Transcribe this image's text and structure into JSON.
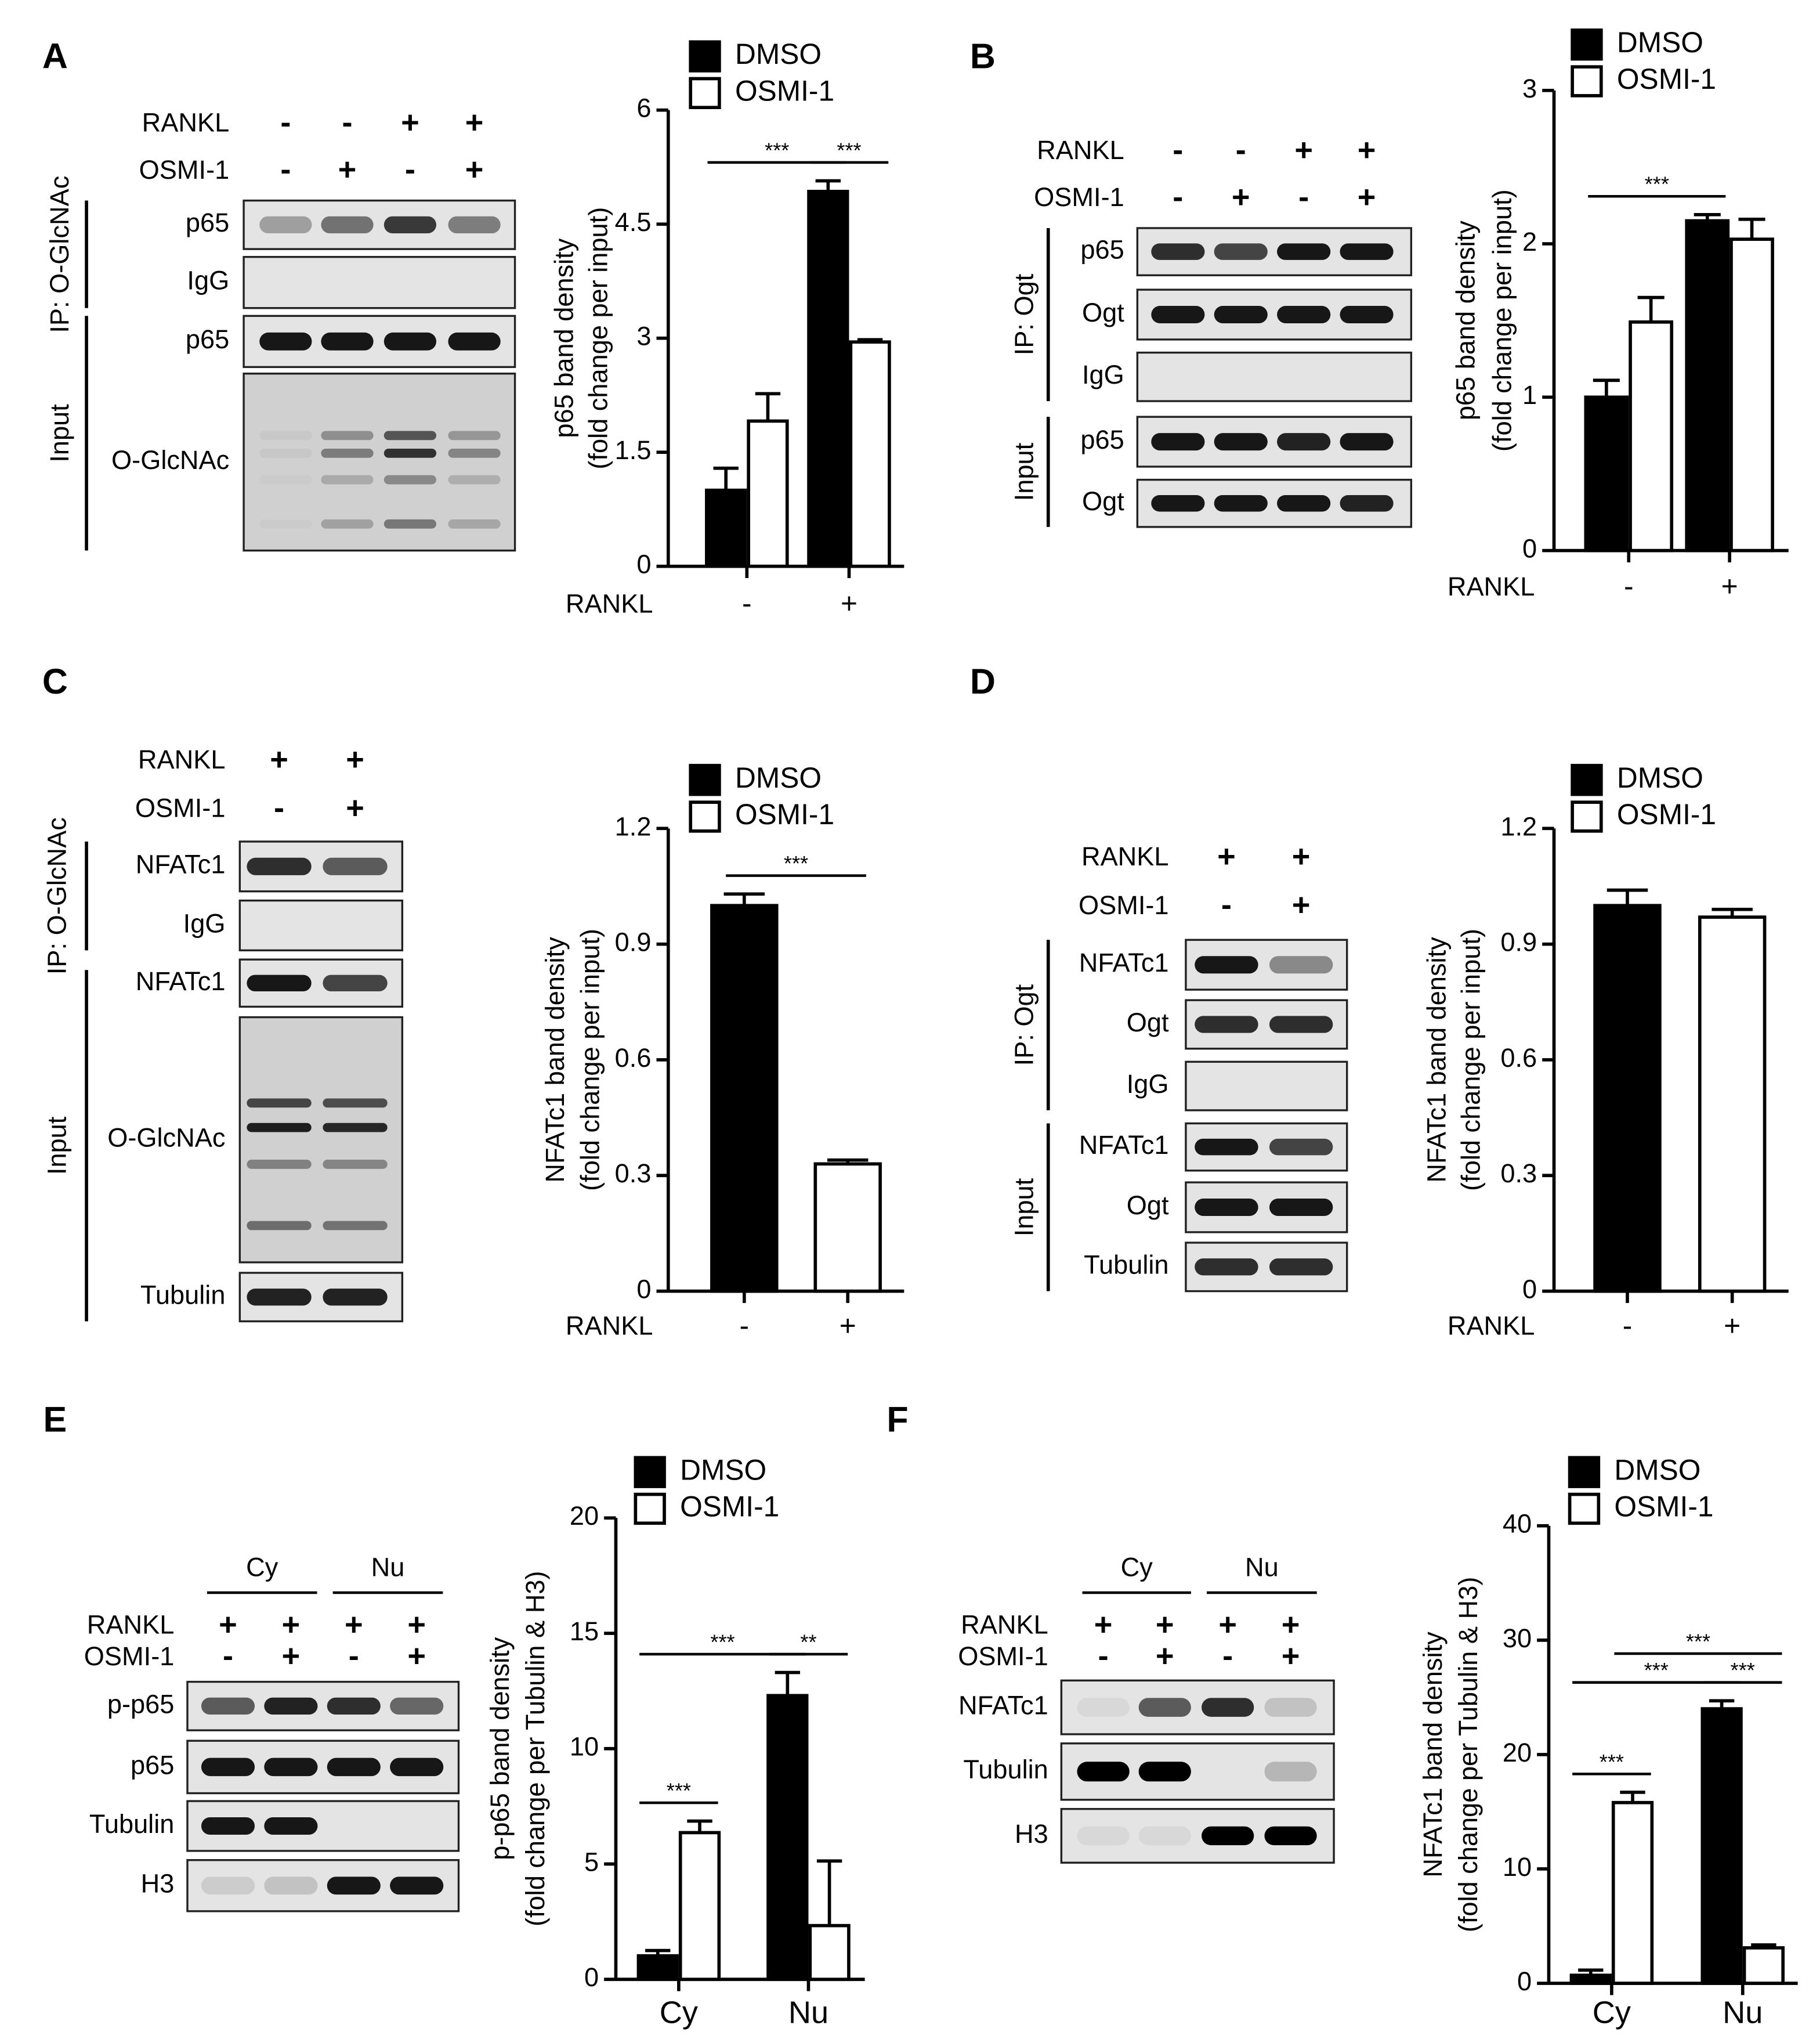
{
  "chart_data": [
    {
      "type": "bar",
      "ylabel": [
        "p65 band density",
        "(fold change per input)"
      ],
      "xlabel": "RANKL",
      "categories": [
        "-",
        "+"
      ],
      "ylim": [
        0,
        6
      ],
      "yticks": [
        0,
        1.5,
        3,
        4.5,
        6
      ],
      "series": [
        {
          "name": "DMSO",
          "color": "#000000",
          "values": [
            1.0,
            4.93
          ],
          "errors": [
            0.29,
            0.14
          ]
        },
        {
          "name": "OSMI-1",
          "color": "#ffffff",
          "values": [
            1.91,
            2.95
          ],
          "errors": [
            0.36,
            0.03
          ]
        }
      ],
      "significance": [
        {
          "label": "***",
          "bars": [
            [
              0,
              1
            ],
            [
              1,
              1
            ]
          ]
        },
        {
          "label": "***",
          "bars": [
            [
              0,
              0
            ],
            [
              0,
              1
            ]
          ]
        }
      ]
    },
    {
      "type": "bar",
      "ylabel": [
        "p65 band density",
        "(fold change per input)"
      ],
      "xlabel": "RANKL",
      "categories": [
        "-",
        "+"
      ],
      "ylim": [
        0,
        3
      ],
      "yticks": [
        0,
        1,
        2,
        3
      ],
      "series": [
        {
          "name": "DMSO",
          "color": "#000000",
          "values": [
            1.0,
            2.15
          ],
          "errors": [
            0.11,
            0.04
          ]
        },
        {
          "name": "OSMI-1",
          "color": "#ffffff",
          "values": [
            1.49,
            2.03
          ],
          "errors": [
            0.16,
            0.13
          ]
        }
      ],
      "significance": [
        {
          "label": "***",
          "bars": [
            [
              0,
              0
            ],
            [
              0,
              1
            ]
          ]
        }
      ]
    },
    {
      "type": "bar",
      "ylabel": [
        "NFATc1 band density",
        "(fold change per input)"
      ],
      "xlabel": "RANKL",
      "categories": [
        "-",
        "+"
      ],
      "ylim": [
        0,
        1.2
      ],
      "yticks": [
        0,
        0.3,
        0.6,
        0.9,
        1.2
      ],
      "series": [
        {
          "name": "DMSO",
          "color": "#000000",
          "values": [
            1.0,
            null
          ],
          "errors": [
            0.03,
            null
          ]
        },
        {
          "name": "OSMI-1",
          "color": "#ffffff",
          "values": [
            null,
            0.33
          ],
          "errors": [
            null,
            0.01
          ]
        }
      ],
      "significance": [
        {
          "label": "***",
          "bars": [
            [
              0,
              0
            ],
            [
              1,
              1
            ]
          ]
        }
      ]
    },
    {
      "type": "bar",
      "ylabel": [
        "NFATc1 band density",
        "(fold change per input)"
      ],
      "xlabel": "RANKL",
      "categories": [
        "-",
        "+"
      ],
      "ylim": [
        0,
        1.2
      ],
      "yticks": [
        0,
        0.3,
        0.6,
        0.9,
        1.2
      ],
      "series": [
        {
          "name": "DMSO",
          "color": "#000000",
          "values": [
            1.0,
            null
          ],
          "errors": [
            0.04,
            null
          ]
        },
        {
          "name": "OSMI-1",
          "color": "#ffffff",
          "values": [
            null,
            0.97
          ],
          "errors": [
            null,
            0.02
          ]
        }
      ]
    },
    {
      "type": "bar",
      "ylabel": [
        "p-p65 band density",
        "(fold change per Tubulin & H3)"
      ],
      "categories": [
        "Cy",
        "Nu"
      ],
      "ylim": [
        0,
        20
      ],
      "yticks": [
        0,
        5,
        10,
        15,
        20
      ],
      "series": [
        {
          "name": "DMSO",
          "color": "#000000",
          "values": [
            1.02,
            12.3
          ],
          "errors": [
            0.23,
            1.0
          ]
        },
        {
          "name": "OSMI-1",
          "color": "#ffffff",
          "values": [
            6.36,
            2.33
          ],
          "errors": [
            0.5,
            2.8
          ]
        }
      ],
      "significance": [
        {
          "label": "***",
          "bars": [
            [
              0,
              0
            ],
            [
              1,
              0
            ]
          ]
        },
        {
          "label": "**",
          "bars": [
            [
              0,
              1
            ],
            [
              1,
              1
            ]
          ]
        },
        {
          "label": "***",
          "bars": [
            [
              0,
              0
            ],
            [
              0,
              1
            ]
          ]
        }
      ]
    },
    {
      "type": "bar",
      "ylabel": [
        "NFATc1 band density",
        "(fold change per Tubulin & H3)"
      ],
      "categories": [
        "Cy",
        "Nu"
      ],
      "ylim": [
        0,
        40
      ],
      "yticks": [
        0,
        10,
        20,
        30,
        40
      ],
      "series": [
        {
          "name": "DMSO",
          "color": "#000000",
          "values": [
            0.7,
            24.0
          ],
          "errors": [
            0.45,
            0.7
          ]
        },
        {
          "name": "OSMI-1",
          "color": "#ffffff",
          "values": [
            15.8,
            3.1
          ],
          "errors": [
            0.9,
            0.25
          ]
        }
      ],
      "significance": [
        {
          "label": "***",
          "bars": [
            [
              0,
              0
            ],
            [
              1,
              0
            ]
          ]
        },
        {
          "label": "***",
          "bars": [
            [
              0,
              1
            ],
            [
              1,
              1
            ]
          ]
        },
        {
          "label": "***",
          "bars": [
            [
              0,
              0
            ],
            [
              0,
              1
            ]
          ]
        },
        {
          "label": "***",
          "bars": [
            [
              1,
              0
            ],
            [
              1,
              1
            ]
          ]
        }
      ]
    }
  ],
  "blots": [
    {
      "letter": "A",
      "conditions": [
        {
          "label": "RANKL",
          "signs": [
            "-",
            "-",
            "+",
            "+"
          ]
        },
        {
          "label": "OSMI-1",
          "signs": [
            "-",
            "+",
            "-",
            "+"
          ]
        }
      ],
      "groups": [
        "IP: O-GlcNAc",
        "Input"
      ],
      "rows": [
        "p65",
        "IgG",
        "p65",
        "O-GlcNAc"
      ]
    },
    {
      "letter": "B",
      "conditions": [
        {
          "label": "RANKL",
          "signs": [
            "-",
            "-",
            "+",
            "+"
          ]
        },
        {
          "label": "OSMI-1",
          "signs": [
            "-",
            "+",
            "-",
            "+"
          ]
        }
      ],
      "groups": [
        "IP: Ogt",
        "Input"
      ],
      "rows": [
        "p65",
        "Ogt",
        "IgG",
        "p65",
        "Ogt"
      ]
    },
    {
      "letter": "C",
      "conditions": [
        {
          "label": "RANKL",
          "signs": [
            "+",
            "+"
          ]
        },
        {
          "label": "OSMI-1",
          "signs": [
            "-",
            "+"
          ]
        }
      ],
      "groups": [
        "IP: O-GlcNAc",
        "Input"
      ],
      "rows": [
        "NFATc1",
        "IgG",
        "NFATc1",
        "O-GlcNAc",
        "Tubulin"
      ]
    },
    {
      "letter": "D",
      "conditions": [
        {
          "label": "RANKL",
          "signs": [
            "+",
            "+"
          ]
        },
        {
          "label": "OSMI-1",
          "signs": [
            "-",
            "+"
          ]
        }
      ],
      "groups": [
        "IP: Ogt",
        "Input"
      ],
      "rows": [
        "NFATc1",
        "Ogt",
        "IgG",
        "NFATc1",
        "Ogt",
        "Tubulin"
      ]
    },
    {
      "letter": "E",
      "fractions": [
        "Cy",
        "Nu"
      ],
      "conditions": [
        {
          "label": "RANKL",
          "signs": [
            "+",
            "+",
            "+",
            "+"
          ]
        },
        {
          "label": "OSMI-1",
          "signs": [
            "-",
            "+",
            "-",
            "+"
          ]
        }
      ],
      "rows": [
        "p-p65",
        "p65",
        "Tubulin",
        "H3"
      ]
    },
    {
      "letter": "F",
      "fractions": [
        "Cy",
        "Nu"
      ],
      "conditions": [
        {
          "label": "RANKL",
          "signs": [
            "+",
            "+",
            "+",
            "+"
          ]
        },
        {
          "label": "OSMI-1",
          "signs": [
            "-",
            "+",
            "-",
            "+"
          ]
        }
      ],
      "rows": [
        "NFATc1",
        "Tubulin",
        "H3"
      ]
    }
  ]
}
